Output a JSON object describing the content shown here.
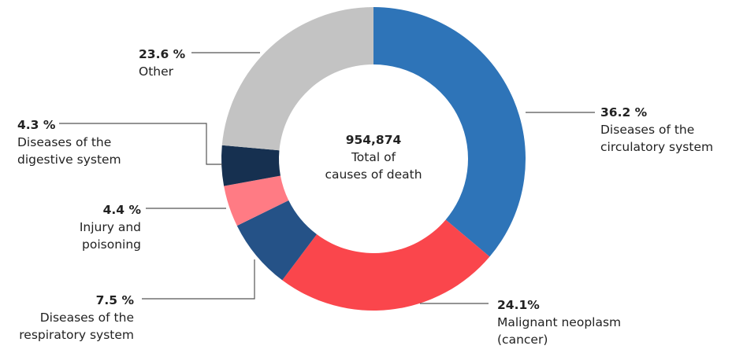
{
  "chart_data": {
    "type": "pie",
    "center": {
      "total": "954,874",
      "label_lines": [
        "Total of",
        "causes of death"
      ]
    },
    "slices": [
      {
        "value": 36.2,
        "pct_label": "36.2 %",
        "label_lines": [
          "Diseases of the",
          "circulatory system"
        ],
        "color": "#2e74b8"
      },
      {
        "value": 24.1,
        "pct_label": "24.1%",
        "label_lines": [
          "Malignant neoplasm",
          "(cancer)"
        ],
        "color": "#fa464c"
      },
      {
        "value": 7.5,
        "pct_label": "7.5 %",
        "label_lines": [
          "Diseases of the",
          "respiratory system"
        ],
        "color": "#255287"
      },
      {
        "value": 4.4,
        "pct_label": "4.4 %",
        "label_lines": [
          "Injury and",
          "poisoning"
        ],
        "color": "#ff7b84"
      },
      {
        "value": 4.3,
        "pct_label": "4.3 %",
        "label_lines": [
          "Diseases of the",
          "digestive system"
        ],
        "color": "#163050"
      },
      {
        "value": 23.6,
        "pct_label": "23.6 %",
        "label_lines": [
          "Other"
        ],
        "color": "#c3c3c3"
      }
    ]
  }
}
